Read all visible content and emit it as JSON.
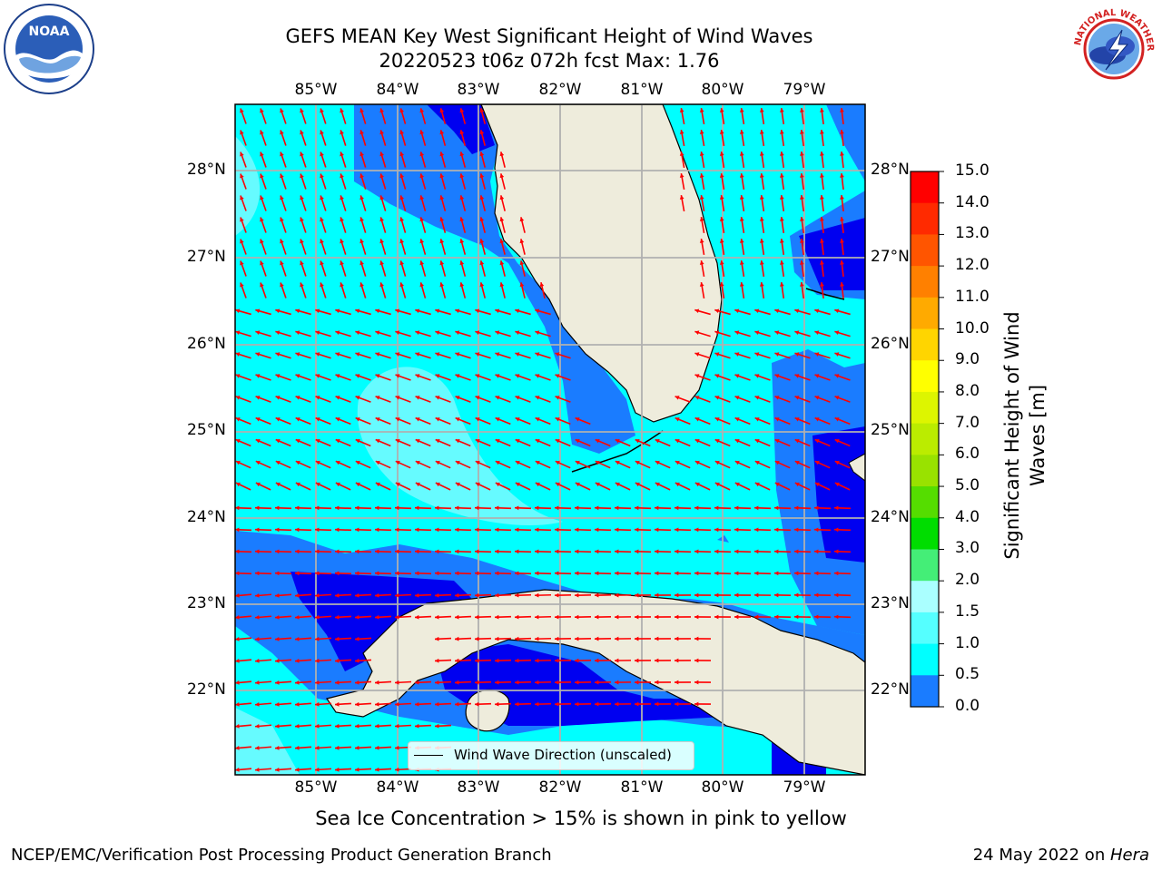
{
  "title": {
    "line1": "GEFS MEAN Key West Significant Height of Wind Waves",
    "line2": "20220523 t06z 072h fcst   Max: 1.76"
  },
  "map": {
    "lon_labels": [
      "85°W",
      "84°W",
      "83°W",
      "82°W",
      "81°W",
      "80°W",
      "79°W"
    ],
    "lat_labels": [
      "28°N",
      "27°N",
      "26°N",
      "25°N",
      "24°N",
      "23°N",
      "22°N"
    ],
    "legend_text": "Wind Wave Direction (unscaled)",
    "ice_note": "Sea Ice Concentration > 15% is shown in pink to yellow",
    "colors": {
      "land": "#eeecdc",
      "cyan_1_0_1_5": "#00ffff",
      "blue_0_5_1_0": "#1a7cff",
      "blue_0_0_0_5": "#0000f0",
      "light_1_5_2_0": "#66fbff",
      "light_2_0_3_0": "#aaffff",
      "arrow": "#ff0000"
    }
  },
  "colorbar": {
    "label": "Significant Height of Wind Waves [m]",
    "ticks": [
      "15.0",
      "14.0",
      "13.0",
      "12.0",
      "11.0",
      "10.0",
      "9.0",
      "8.0",
      "7.0",
      "6.0",
      "5.0",
      "4.0",
      "3.0",
      "2.0",
      "1.5",
      "1.0",
      "0.5",
      "0.0"
    ],
    "colors": [
      "#ff0000",
      "#ff2a00",
      "#ff5500",
      "#ff8000",
      "#ffaa00",
      "#ffd500",
      "#ffff00",
      "#ddf500",
      "#bbec00",
      "#99e200",
      "#55dd00",
      "#00dd00",
      "#44ee77",
      "#aaffff",
      "#55ffff",
      "#00ffff",
      "#1a7cff",
      "#0000f0"
    ]
  },
  "footer": {
    "left": "NCEP/EMC/Verification Post Processing Product Generation Branch",
    "right_date": "24 May 2022 on ",
    "right_host": "Hera"
  },
  "logos": {
    "noaa_text": "NOAA",
    "nws_text": "NATIONAL WEATHER SERVICE"
  }
}
